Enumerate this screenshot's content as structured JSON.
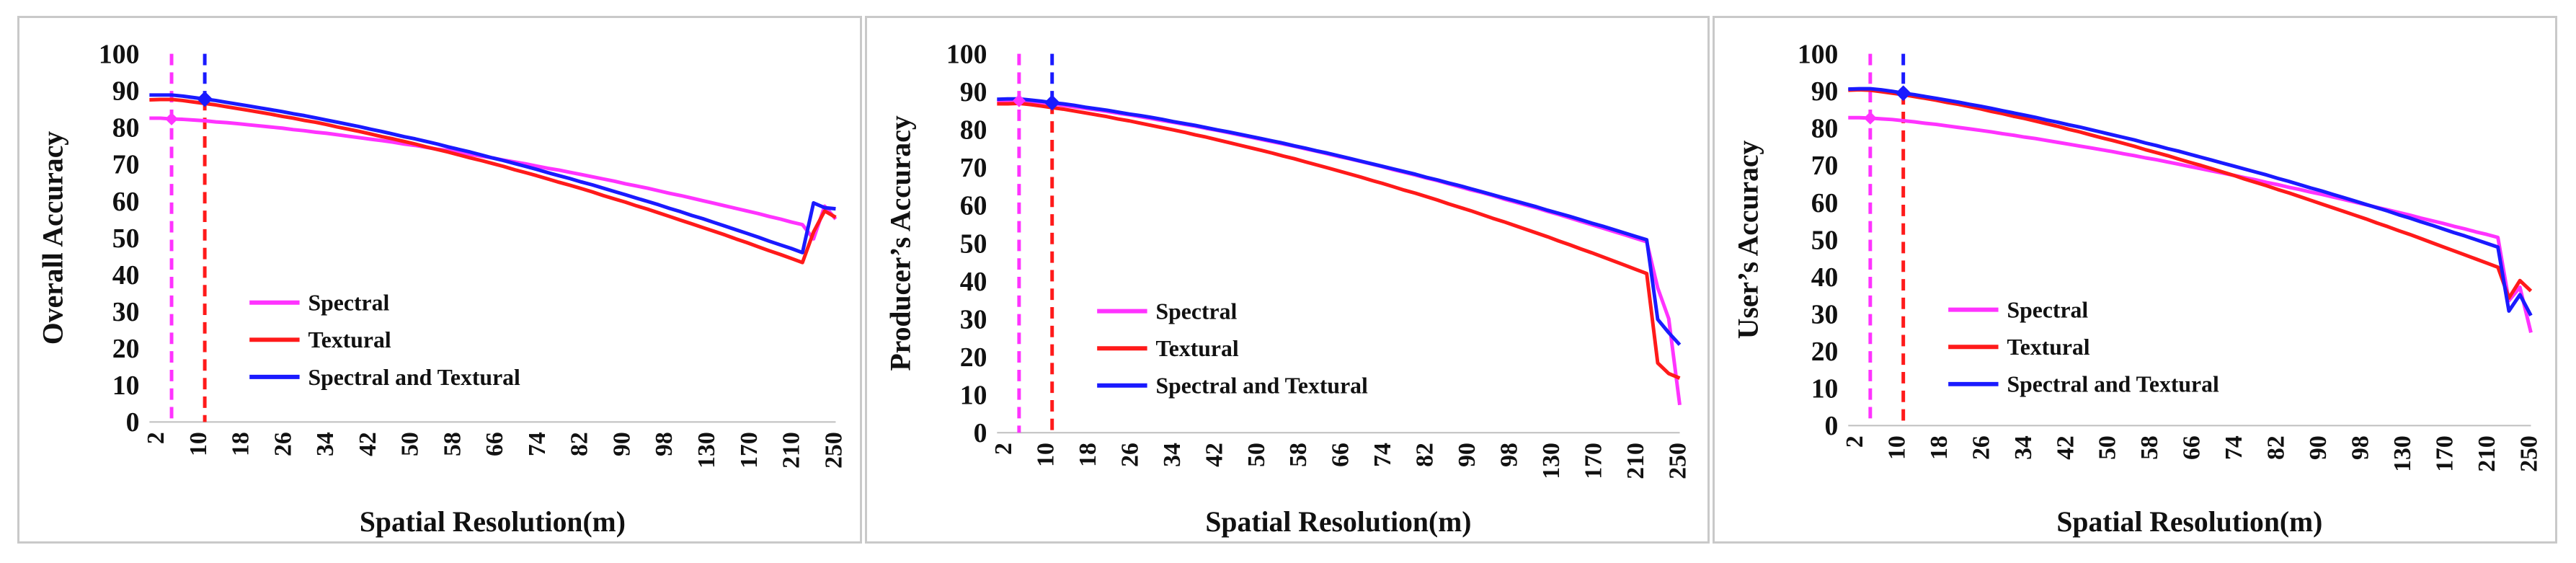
{
  "chart_data": [
    {
      "type": "line",
      "ylabel": "Overall Accuracy",
      "xlabel": "Spatial Resolution(m)",
      "ylim": [
        0,
        100
      ],
      "yticks": [
        0,
        10,
        20,
        30,
        40,
        50,
        60,
        70,
        80,
        90,
        100
      ],
      "xtick_labels": [
        "2",
        "10",
        "18",
        "26",
        "34",
        "42",
        "50",
        "58",
        "66",
        "74",
        "82",
        "90",
        "98",
        "130",
        "170",
        "210",
        "250"
      ],
      "legend_position": "lower-left",
      "markers": {
        "spectral": "6",
        "combined": "12"
      },
      "series": [
        {
          "name": "Spectral",
          "color": "#ff33ff",
          "values": [
            82.5,
            82.5,
            82.3,
            82.2,
            82,
            81.8,
            81.5,
            81.3,
            81,
            80.7,
            80.4,
            80.1,
            79.8,
            79.4,
            79.1,
            78.7,
            78.4,
            78,
            77.6,
            77.2,
            76.8,
            76.4,
            76,
            75.5,
            75.1,
            74.6,
            74.1,
            73.7,
            73.2,
            72.7,
            72.2,
            71.7,
            71.1,
            70.6,
            70.1,
            69.5,
            68.9,
            68.4,
            67.8,
            67.2,
            66.6,
            66,
            65.4,
            64.7,
            64.1,
            63.5,
            62.8,
            62.1,
            61.5,
            60.8,
            60.1,
            59.4,
            58.7,
            58,
            57.3,
            56.6,
            55.8,
            55.1,
            54.3,
            53.6,
            49.7,
            58.6,
            55.1
          ]
        },
        {
          "name": "Textural",
          "color": "#ff1a1a",
          "values": [
            87.5,
            87.6,
            87.6,
            87.3,
            86.9,
            86.5,
            86.1,
            85.6,
            85.1,
            84.6,
            84.1,
            83.6,
            83,
            82.5,
            81.9,
            81.4,
            80.8,
            80.1,
            79.5,
            78.9,
            78.2,
            77.5,
            76.9,
            76.2,
            75.5,
            74.7,
            74,
            73.3,
            72.5,
            71.7,
            71,
            70.2,
            69.4,
            68.5,
            67.7,
            66.9,
            66,
            65.1,
            64.3,
            63.4,
            62.5,
            61.5,
            60.6,
            59.7,
            58.7,
            57.8,
            56.8,
            55.8,
            54.8,
            53.8,
            52.8,
            51.8,
            50.8,
            49.7,
            48.7,
            47.6,
            46.5,
            45.5,
            44.4,
            43.3,
            51.6,
            57.3,
            55.6
          ]
        },
        {
          "name": "Spectral and Textural",
          "color": "#1a1aff",
          "values": [
            88.8,
            88.8,
            88.8,
            88.5,
            88.1,
            87.7,
            87.3,
            86.8,
            86.3,
            85.8,
            85.3,
            84.8,
            84.3,
            83.7,
            83.2,
            82.6,
            82,
            81.4,
            80.8,
            80.2,
            79.5,
            78.9,
            78.2,
            77.5,
            76.9,
            76.2,
            75.5,
            74.7,
            74,
            73.3,
            72.5,
            71.7,
            71,
            70.2,
            69.4,
            68.6,
            67.7,
            66.9,
            66.1,
            65.2,
            64.4,
            63.5,
            62.6,
            61.7,
            60.8,
            59.9,
            59,
            58,
            57.1,
            56.1,
            55.2,
            54.2,
            53.2,
            52.2,
            51.2,
            50.2,
            49.1,
            48.1,
            47.1,
            46,
            59.5,
            58.2,
            57.9
          ]
        }
      ]
    },
    {
      "type": "line",
      "ylabel": "Producer’s Accuracy",
      "xlabel": "Spatial Resolution(m)",
      "ylim": [
        0,
        100
      ],
      "yticks": [
        0,
        10,
        20,
        30,
        40,
        50,
        60,
        70,
        80,
        90,
        100
      ],
      "xtick_labels": [
        "2",
        "10",
        "18",
        "26",
        "34",
        "42",
        "50",
        "58",
        "66",
        "74",
        "82",
        "90",
        "98",
        "130",
        "170",
        "210",
        "250"
      ],
      "legend_position": "lower-left",
      "markers": {
        "spectral": "6",
        "combined": "12"
      },
      "series": [
        {
          "name": "Spectral",
          "color": "#ff33ff",
          "values": [
            87.5,
            87.6,
            87.6,
            87.4,
            87.1,
            86.8,
            86.4,
            86,
            85.6,
            85.2,
            84.8,
            84.3,
            83.9,
            83.4,
            82.9,
            82.4,
            81.9,
            81.4,
            80.9,
            80.3,
            79.8,
            79.2,
            78.6,
            78,
            77.4,
            76.8,
            76.2,
            75.6,
            74.9,
            74.3,
            73.6,
            72.9,
            72.3,
            71.6,
            70.9,
            70.2,
            69.4,
            68.7,
            68,
            67.2,
            66.5,
            65.7,
            64.9,
            64.1,
            63.4,
            62.6,
            61.7,
            60.9,
            60.1,
            59.3,
            58.4,
            57.6,
            56.7,
            55.8,
            54.9,
            54,
            53.1,
            52.2,
            51.3,
            50.4,
            38.2,
            30.1,
            7.3
          ]
        },
        {
          "name": "Textural",
          "color": "#ff1a1a",
          "values": [
            86.8,
            86.8,
            86.9,
            86.6,
            86.2,
            85.8,
            85.4,
            84.9,
            84.4,
            83.9,
            83.4,
            82.8,
            82.3,
            81.7,
            81.1,
            80.5,
            79.9,
            79.3,
            78.6,
            78,
            77.3,
            76.6,
            75.9,
            75.2,
            74.5,
            73.8,
            73,
            72.3,
            71.5,
            70.7,
            69.9,
            69.1,
            68.3,
            67.5,
            66.6,
            65.8,
            64.9,
            64,
            63.2,
            62.3,
            61.4,
            60.4,
            59.5,
            58.6,
            57.6,
            56.6,
            55.7,
            54.7,
            53.7,
            52.7,
            51.7,
            50.6,
            49.6,
            48.5,
            47.5,
            46.4,
            45.3,
            44.2,
            43.1,
            42,
            18.4,
            15.6,
            14.4
          ]
        },
        {
          "name": "Spectral and Textural",
          "color": "#1a1aff",
          "values": [
            88,
            88.1,
            88.1,
            87.8,
            87.5,
            87.1,
            86.8,
            86.4,
            85.9,
            85.5,
            85.1,
            84.6,
            84.1,
            83.7,
            83.2,
            82.7,
            82.1,
            81.6,
            81.1,
            80.5,
            79.9,
            79.4,
            78.8,
            78.2,
            77.6,
            77,
            76.4,
            75.7,
            75.1,
            74.4,
            73.8,
            73.1,
            72.4,
            71.7,
            71,
            70.3,
            69.6,
            68.9,
            68.2,
            67.4,
            66.7,
            65.9,
            65.2,
            64.4,
            63.6,
            62.8,
            62,
            61.2,
            60.4,
            59.6,
            58.7,
            57.9,
            57.1,
            56.2,
            55.3,
            54.5,
            53.6,
            52.7,
            51.8,
            50.9,
            29.9,
            26.4,
            23.2
          ]
        }
      ]
    },
    {
      "type": "line",
      "ylabel": "User’s Accuracy",
      "xlabel": "Spatial Resolution(m)",
      "ylim": [
        0,
        100
      ],
      "yticks": [
        0,
        10,
        20,
        30,
        40,
        50,
        60,
        70,
        80,
        90,
        100
      ],
      "xtick_labels": [
        "2",
        "10",
        "18",
        "26",
        "34",
        "42",
        "50",
        "58",
        "66",
        "74",
        "82",
        "90",
        "98",
        "130",
        "170",
        "210",
        "250"
      ],
      "legend_position": "lower-left",
      "markers": {
        "spectral": "6",
        "combined": "12"
      },
      "series": [
        {
          "name": "Spectral",
          "color": "#ff33ff",
          "values": [
            82.8,
            82.8,
            82.7,
            82.5,
            82.3,
            82,
            81.7,
            81.3,
            81,
            80.6,
            80.2,
            79.8,
            79.4,
            79,
            78.5,
            78.1,
            77.6,
            77.2,
            76.7,
            76.2,
            75.7,
            75.2,
            74.7,
            74.2,
            73.7,
            73.1,
            72.6,
            72,
            71.5,
            70.9,
            70.3,
            69.7,
            69.1,
            68.5,
            67.9,
            67.3,
            66.7,
            66.1,
            65.4,
            64.8,
            64.1,
            63.5,
            62.8,
            62.2,
            61.5,
            60.8,
            60.1,
            59.4,
            58.7,
            58,
            57.3,
            56.6,
            55.8,
            55.1,
            54.4,
            53.6,
            52.9,
            52.1,
            51.4,
            50.6,
            33.6,
            37.2,
            25
          ]
        },
        {
          "name": "Textural",
          "color": "#ff1a1a",
          "values": [
            90.2,
            90.3,
            90.2,
            89.8,
            89.4,
            89,
            88.5,
            88,
            87.5,
            86.9,
            86.4,
            85.8,
            85.2,
            84.5,
            83.9,
            83.2,
            82.6,
            81.9,
            81.2,
            80.5,
            79.7,
            79,
            78.2,
            77.4,
            76.7,
            75.9,
            75.1,
            74.2,
            73.4,
            72.6,
            71.7,
            70.8,
            70,
            69.1,
            68.2,
            67.3,
            66.3,
            65.4,
            64.5,
            63.5,
            62.6,
            61.6,
            60.6,
            59.6,
            58.6,
            57.6,
            56.6,
            55.6,
            54.5,
            53.5,
            52.4,
            51.4,
            50.3,
            49.2,
            48.1,
            47,
            45.9,
            44.8,
            43.7,
            42.6,
            34.3,
            39,
            36.2
          ]
        },
        {
          "name": "Spectral and Textural",
          "color": "#1a1aff",
          "values": [
            90.5,
            90.6,
            90.6,
            90.3,
            89.9,
            89.4,
            89,
            88.5,
            88,
            87.5,
            87,
            86.4,
            85.9,
            85.3,
            84.7,
            84.1,
            83.5,
            82.9,
            82.2,
            81.6,
            80.9,
            80.3,
            79.6,
            78.9,
            78.2,
            77.5,
            76.8,
            76,
            75.3,
            74.5,
            73.8,
            73,
            72.2,
            71.4,
            70.6,
            69.8,
            69,
            68.2,
            67.4,
            66.5,
            65.7,
            64.8,
            63.9,
            63.1,
            62.2,
            61.3,
            60.4,
            59.5,
            58.6,
            57.7,
            56.7,
            55.8,
            54.8,
            53.9,
            52.9,
            51.9,
            51,
            50,
            49,
            48,
            30.8,
            35.2,
            29.6
          ]
        }
      ]
    }
  ]
}
